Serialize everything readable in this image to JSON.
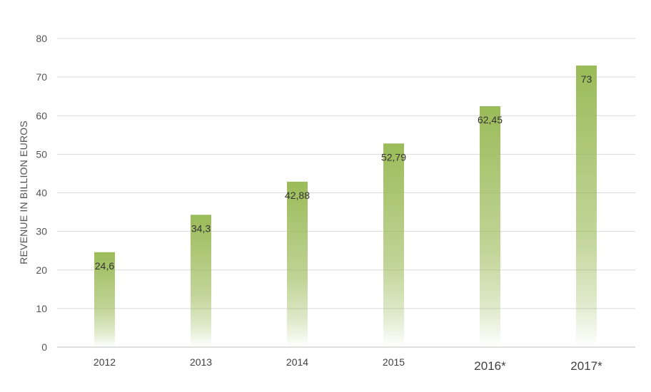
{
  "chart_data": {
    "type": "bar",
    "title": "",
    "xlabel": "",
    "ylabel": "REVENUE IN BILLION EUROS",
    "ylim": [
      0,
      80
    ],
    "yticks": [
      0,
      10,
      20,
      30,
      40,
      50,
      60,
      70,
      80
    ],
    "grid": true,
    "legend": "none",
    "categories": [
      "2012",
      "2013",
      "2014",
      "2015",
      "2016*",
      "2017*"
    ],
    "values": [
      24.6,
      34.3,
      42.88,
      52.79,
      62.45,
      73
    ],
    "data_labels": [
      "24,6",
      "34,3",
      "42,88",
      "52,79",
      "62,45",
      "73"
    ],
    "bar_color": "#9bbb59"
  }
}
